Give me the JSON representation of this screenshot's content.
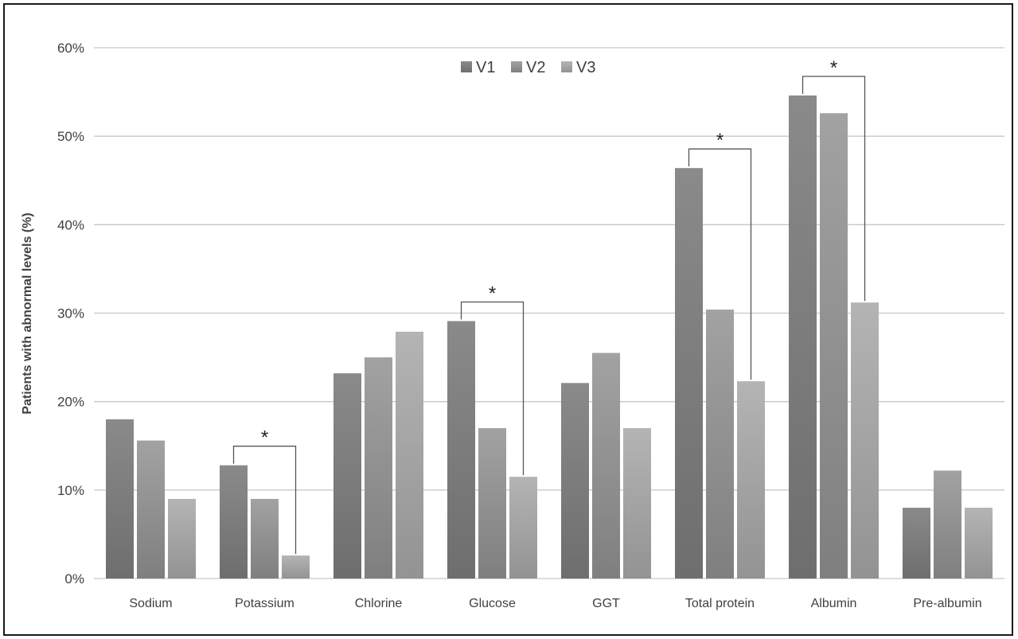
{
  "chart_data": {
    "type": "bar",
    "ylabel": "Patients with abnormal levels (%)",
    "xlabel": "",
    "ylim": [
      0,
      60
    ],
    "ytick_values": [
      0,
      10,
      20,
      30,
      40,
      50,
      60
    ],
    "ytick_labels": [
      "0%",
      "10%",
      "20%",
      "30%",
      "40%",
      "50%",
      "60%"
    ],
    "grid": true,
    "legend_position": "top-center",
    "categories": [
      "Sodium",
      "Potassium",
      "Chlorine",
      "Glucose",
      "GGT",
      "Total protein",
      "Albumin",
      "Pre-albumin"
    ],
    "series": [
      {
        "name": "V1",
        "color": "#7a7a7a",
        "values": [
          18.0,
          12.8,
          23.2,
          29.1,
          22.1,
          46.4,
          54.6,
          8.0
        ]
      },
      {
        "name": "V2",
        "color": "#8f8f8f",
        "values": [
          15.6,
          9.0,
          25.0,
          17.0,
          25.5,
          30.4,
          52.6,
          12.2
        ]
      },
      {
        "name": "V3",
        "color": "#a3a3a3",
        "values": [
          9.0,
          2.6,
          27.9,
          11.5,
          17.0,
          22.3,
          31.2,
          8.0
        ]
      }
    ],
    "annotations": [
      {
        "category": "Potassium",
        "from_series": "V1",
        "to_series": "V3",
        "label": "*"
      },
      {
        "category": "Glucose",
        "from_series": "V1",
        "to_series": "V3",
        "label": "*"
      },
      {
        "category": "Total protein",
        "from_series": "V1",
        "to_series": "V3",
        "label": "*"
      },
      {
        "category": "Albumin",
        "from_series": "V1",
        "to_series": "V3",
        "label": "*"
      }
    ]
  }
}
